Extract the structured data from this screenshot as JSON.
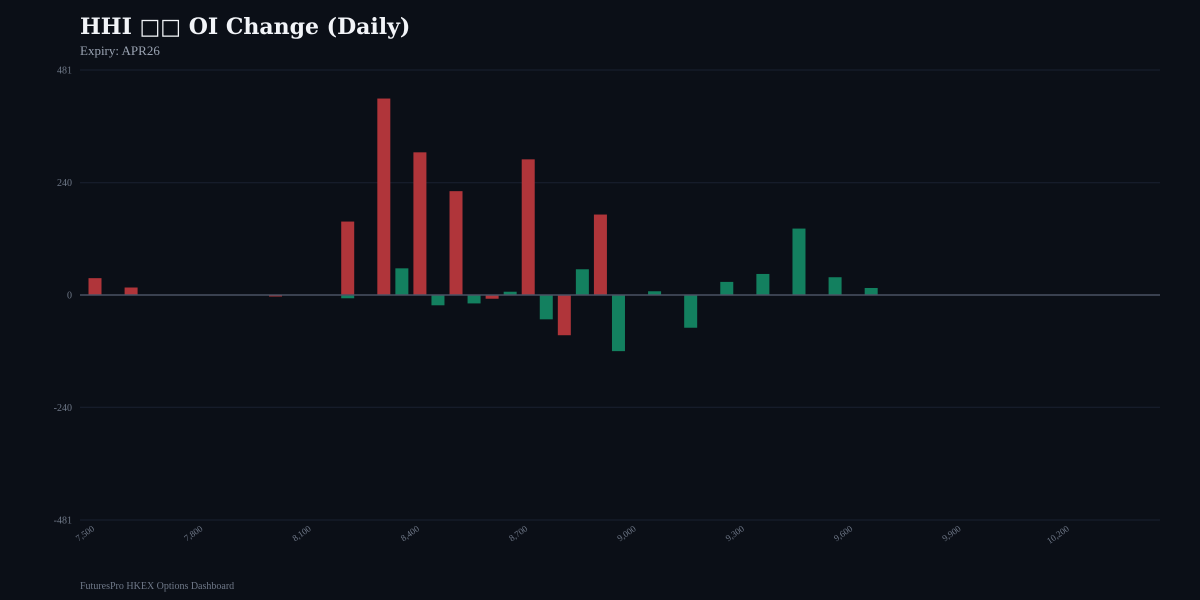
{
  "header": {
    "title": "HHI □□ OI Change (Daily)",
    "subtitle": "Expiry: APR26"
  },
  "footer": {
    "text": "FuturesPro HKEX Options Dashboard"
  },
  "colors": {
    "background": "#0b0f17",
    "call": "#b0353a",
    "put": "#13805f",
    "grid": "#1a2030",
    "zero_line": "#4a5264"
  },
  "chart_data": {
    "type": "bar",
    "title": "HHI □□ OI Change (Daily)",
    "subtitle": "Expiry: APR26",
    "xlabel": "",
    "ylabel": "",
    "ylim": [
      -481,
      481
    ],
    "yticks": [
      481,
      240,
      0,
      -240,
      -481
    ],
    "xlim": [
      7500,
      10450
    ],
    "xticks": [
      7500,
      7800,
      8100,
      8400,
      8700,
      9000,
      9300,
      9600,
      9900,
      10200
    ],
    "xtick_labels": [
      "7,500",
      "7,800",
      "8,100",
      "8,400",
      "8,700",
      "9,000",
      "9,300",
      "9,600",
      "9,900",
      "10,200"
    ],
    "grid": true,
    "series": [
      {
        "color": "#b0353a",
        "x": [
          7500,
          7600,
          8000,
          8200,
          8300,
          8400,
          8500,
          8600,
          8700,
          8800,
          8900
        ],
        "values": [
          36,
          16,
          -3,
          157,
          420,
          305,
          222,
          -8,
          290,
          -86,
          172
        ]
      },
      {
        "color": "#13805f",
        "x": [
          8200,
          8350,
          8450,
          8550,
          8650,
          8750,
          8850,
          8950,
          9050,
          9150,
          9250,
          9350,
          9450,
          9550,
          9650
        ],
        "values": [
          -7,
          57,
          -22,
          -18,
          7,
          -52,
          55,
          -120,
          8,
          -70,
          28,
          45,
          142,
          38,
          15
        ]
      }
    ]
  }
}
